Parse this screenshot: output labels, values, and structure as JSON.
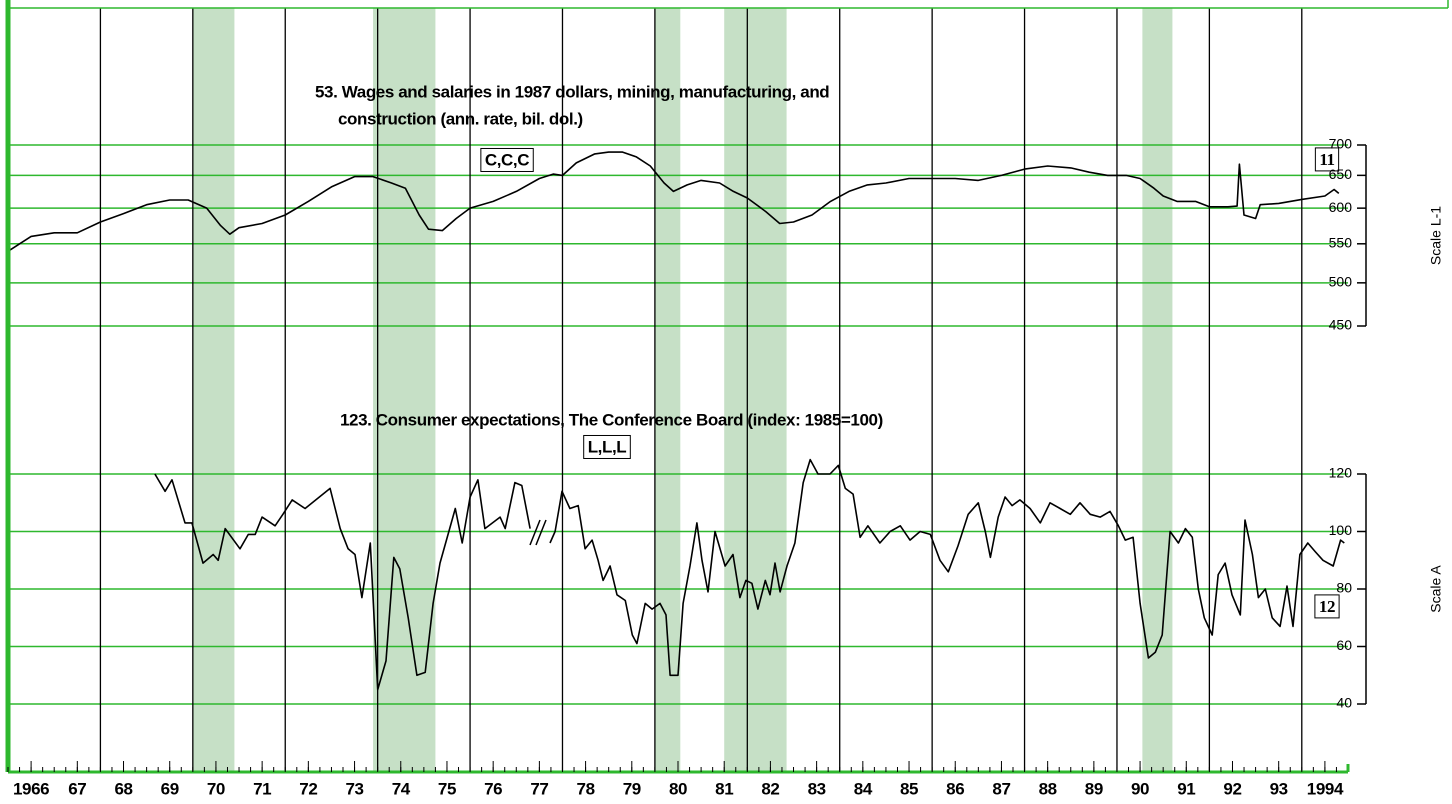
{
  "shared_x": {
    "xlim": [
      1966,
      1995
    ],
    "xticks": [
      {
        "value": 1966,
        "label": "1966"
      },
      {
        "value": 1967,
        "label": "67"
      },
      {
        "value": 1968,
        "label": "68"
      },
      {
        "value": 1969,
        "label": "69"
      },
      {
        "value": 1970,
        "label": "70"
      },
      {
        "value": 1971,
        "label": "71"
      },
      {
        "value": 1972,
        "label": "72"
      },
      {
        "value": 1973,
        "label": "73"
      },
      {
        "value": 1974,
        "label": "74"
      },
      {
        "value": 1975,
        "label": "75"
      },
      {
        "value": 1976,
        "label": "76"
      },
      {
        "value": 1977,
        "label": "77"
      },
      {
        "value": 1978,
        "label": "78"
      },
      {
        "value": 1979,
        "label": "79"
      },
      {
        "value": 1980,
        "label": "80"
      },
      {
        "value": 1981,
        "label": "81"
      },
      {
        "value": 1982,
        "label": "82"
      },
      {
        "value": 1983,
        "label": "83"
      },
      {
        "value": 1984,
        "label": "84"
      },
      {
        "value": 1985,
        "label": "85"
      },
      {
        "value": 1986,
        "label": "86"
      },
      {
        "value": 1987,
        "label": "87"
      },
      {
        "value": 1988,
        "label": "88"
      },
      {
        "value": 1989,
        "label": "89"
      },
      {
        "value": 1990,
        "label": "90"
      },
      {
        "value": 1991,
        "label": "91"
      },
      {
        "value": 1992,
        "label": "92"
      },
      {
        "value": 1993,
        "label": "93"
      },
      {
        "value": 1994,
        "label": "1994"
      }
    ],
    "xgrid": [
      1968,
      1970,
      1972,
      1974,
      1976,
      1978,
      1980,
      1982,
      1984,
      1986,
      1988,
      1990,
      1992,
      1994
    ],
    "shading": [
      [
        1970.0,
        1970.9
      ],
      [
        1973.9,
        1975.25
      ],
      [
        1980.0,
        1980.55
      ],
      [
        1981.5,
        1982.85
      ],
      [
        1990.55,
        1991.2
      ]
    ],
    "shading_color": "#c6e0c6",
    "grid_color": "#2eb82e"
  },
  "chart_data": [
    {
      "type": "line",
      "log_scale": true,
      "color": "#000000",
      "title": [
        "53. Wages and salaries in 1987 dollars, mining, manufacturing, and",
        "construction (ann. rate, bil. dol.)"
      ],
      "annotations": [
        "C,C,C",
        "11"
      ],
      "ylabel": "Scale L-1",
      "ylim": [
        450,
        700
      ],
      "yticks": [
        450,
        500,
        550,
        600,
        650,
        700
      ],
      "x": [
        1966.0,
        1966.5,
        1967,
        1967.5,
        1968,
        1968.5,
        1969,
        1969.5,
        1969.9,
        1970.3,
        1970.6,
        1970.8,
        1971,
        1971.5,
        1972,
        1972.5,
        1973,
        1973.5,
        1973.9,
        1974.3,
        1974.6,
        1974.9,
        1975.1,
        1975.4,
        1975.7,
        1976,
        1976.5,
        1977,
        1977.5,
        1977.8,
        1978,
        1978.3,
        1978.7,
        1979,
        1979.3,
        1979.6,
        1979.9,
        1980.2,
        1980.4,
        1980.7,
        1981,
        1981.4,
        1981.7,
        1982,
        1982.4,
        1982.7,
        1983,
        1983.4,
        1983.8,
        1984.2,
        1984.6,
        1985,
        1985.5,
        1986,
        1986.5,
        1987,
        1987.5,
        1988,
        1988.5,
        1989,
        1989.4,
        1989.8,
        1990.2,
        1990.5,
        1990.8,
        1991,
        1991.3,
        1991.7,
        1992,
        1992.4,
        1992.6,
        1992.65,
        1992.75,
        1993,
        1993.1,
        1993.5,
        1994,
        1994.5,
        1994.7,
        1994.8
      ],
      "values": [
        540,
        560,
        565,
        565,
        580,
        592,
        605,
        612,
        612,
        600,
        575,
        563,
        572,
        578,
        590,
        610,
        632,
        648,
        648,
        638,
        630,
        590,
        570,
        568,
        585,
        600,
        610,
        625,
        645,
        652,
        650,
        670,
        685,
        688,
        688,
        680,
        665,
        638,
        625,
        635,
        642,
        638,
        625,
        615,
        595,
        578,
        580,
        590,
        610,
        625,
        635,
        638,
        645,
        645,
        645,
        642,
        650,
        660,
        665,
        662,
        655,
        650,
        650,
        645,
        630,
        618,
        610,
        610,
        602,
        602,
        603,
        668,
        590,
        585,
        605,
        607,
        613,
        618,
        628,
        622
      ]
    },
    {
      "type": "line",
      "log_scale": false,
      "color": "#000000",
      "title": [
        "123. Consumer expectations, The Conference Board (index: 1985=100)"
      ],
      "annotations": [
        "L,L,L",
        "12"
      ],
      "ylabel": "Scale A",
      "ylim": [
        40,
        120
      ],
      "yticks": [
        40,
        60,
        80,
        100,
        120
      ],
      "x": [
        1969.18,
        1969.4,
        1969.55,
        1969.83,
        1969.98,
        1970.22,
        1970.44,
        1970.55,
        1970.7,
        1971.02,
        1971.2,
        1971.35,
        1971.5,
        1971.78,
        1971.95,
        1972.15,
        1972.43,
        1972.97,
        1973.19,
        1973.36,
        1973.51,
        1973.66,
        1973.84,
        1974.0,
        1974.18,
        1974.35,
        1974.48,
        1974.66,
        1974.85,
        1975.03,
        1975.2,
        1975.35,
        1975.68,
        1975.83,
        1976.0,
        1976.17,
        1976.32,
        1976.65,
        1976.76,
        1976.97,
        1977.12,
        1977.3,
        1977.5,
        1977.73,
        1977.84,
        1977.99,
        1978.16,
        1978.34,
        1978.49,
        1978.64,
        1978.77,
        1978.88,
        1979.03,
        1979.18,
        1979.36,
        1979.51,
        1979.61,
        1979.79,
        1979.94,
        1980.11,
        1980.24,
        1980.33,
        1980.5,
        1980.61,
        1980.76,
        1980.91,
        1981.02,
        1981.15,
        1981.3,
        1981.52,
        1981.69,
        1981.84,
        1981.97,
        1982.1,
        1982.23,
        1982.39,
        1982.49,
        1982.6,
        1982.71,
        1982.86,
        1983.03,
        1983.21,
        1983.36,
        1983.53,
        1983.79,
        1983.97,
        1984.12,
        1984.29,
        1984.44,
        1984.61,
        1984.87,
        1985.09,
        1985.31,
        1985.52,
        1985.74,
        1985.96,
        1986.17,
        1986.35,
        1986.56,
        1986.78,
        1987.0,
        1987.15,
        1987.26,
        1987.43,
        1987.58,
        1987.73,
        1987.9,
        1988.12,
        1988.34,
        1988.55,
        1988.77,
        1988.99,
        1989.2,
        1989.42,
        1989.64,
        1989.85,
        1990.03,
        1990.18,
        1990.35,
        1990.5,
        1990.68,
        1990.83,
        1990.98,
        1991.15,
        1991.33,
        1991.48,
        1991.63,
        1991.76,
        1991.89,
        1992.06,
        1992.19,
        1992.34,
        1992.49,
        1992.67,
        1992.77,
        1992.93,
        1993.06,
        1993.21,
        1993.36,
        1993.53,
        1993.68,
        1993.81,
        1993.96,
        1994.13,
        1994.29,
        1994.46,
        1994.68,
        1994.84,
        1994.92
      ],
      "values": [
        120,
        114,
        118,
        103,
        103,
        89,
        92,
        90,
        101,
        94,
        99,
        99,
        105,
        102,
        106,
        111,
        108,
        115,
        101,
        94,
        92,
        77,
        96,
        45,
        55,
        91,
        87,
        70,
        50,
        51,
        75,
        89,
        108,
        96,
        112,
        118,
        101,
        105,
        101,
        117,
        116,
        101,
        null,
        96,
        100,
        114,
        108,
        109,
        94,
        97,
        90,
        83,
        88,
        78,
        76,
        64,
        61,
        75,
        73,
        75,
        71,
        50,
        50,
        75,
        88,
        103,
        90,
        79,
        100,
        88,
        92,
        77,
        83,
        82,
        73,
        83,
        78,
        89,
        79,
        88,
        96,
        117,
        125,
        120,
        120,
        123,
        115,
        113,
        98,
        102,
        96,
        100,
        102,
        97,
        100,
        99,
        90,
        86,
        95,
        106,
        110,
        100,
        91,
        105,
        112,
        109,
        111,
        108,
        103,
        110,
        108,
        106,
        110,
        106,
        105,
        107,
        102,
        97,
        98,
        75,
        56,
        58,
        64,
        100,
        96,
        101,
        98,
        80,
        70,
        64,
        85,
        89,
        78,
        71,
        104,
        92,
        77,
        80,
        70,
        67,
        81,
        67,
        92,
        96,
        93,
        90,
        88,
        97,
        96
      ]
    }
  ]
}
